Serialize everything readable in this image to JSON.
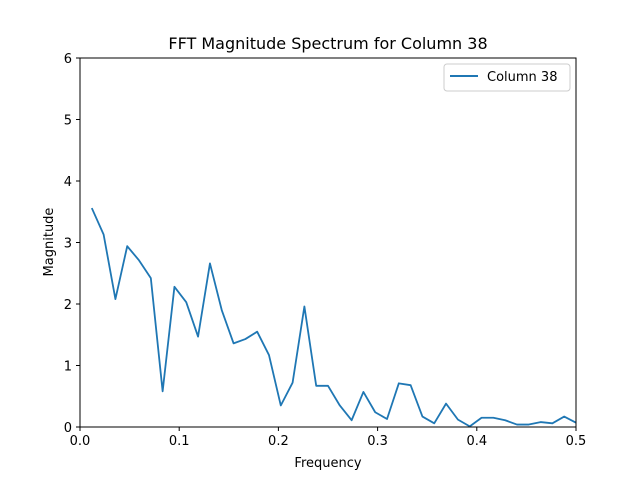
{
  "chart_data": {
    "type": "line",
    "title": "FFT Magnitude Spectrum for Column 38",
    "xlabel": "Frequency",
    "ylabel": "Magnitude",
    "xlim": [
      0.0,
      0.5
    ],
    "ylim": [
      0,
      6
    ],
    "xticks": [
      "0.0",
      "0.1",
      "0.2",
      "0.3",
      "0.4",
      "0.5"
    ],
    "yticks": [
      "0",
      "1",
      "2",
      "3",
      "4",
      "5",
      "6"
    ],
    "grid": false,
    "legend_position": "top-right",
    "series": [
      {
        "name": "Column 38",
        "color": "#1f77b4",
        "x": [
          0.0119,
          0.0238,
          0.0357,
          0.0476,
          0.0595,
          0.0714,
          0.0833,
          0.0952,
          0.1071,
          0.119,
          0.131,
          0.1429,
          0.1548,
          0.1667,
          0.1786,
          0.1905,
          0.2024,
          0.2143,
          0.2262,
          0.2381,
          0.25,
          0.2619,
          0.2738,
          0.2857,
          0.2976,
          0.3095,
          0.3214,
          0.3333,
          0.3452,
          0.3571,
          0.369,
          0.381,
          0.3929,
          0.4048,
          0.4167,
          0.4286,
          0.4405,
          0.4524,
          0.4643,
          0.4762,
          0.4881,
          0.5
        ],
        "y": [
          3.56,
          3.13,
          2.08,
          2.94,
          2.71,
          2.42,
          0.58,
          2.28,
          2.03,
          1.47,
          2.66,
          1.9,
          1.36,
          1.43,
          1.55,
          1.17,
          0.35,
          0.72,
          1.96,
          0.67,
          0.67,
          0.35,
          0.11,
          0.57,
          0.24,
          0.13,
          0.71,
          0.68,
          0.17,
          0.06,
          0.38,
          0.12,
          0.01,
          0.15,
          0.15,
          0.11,
          0.04,
          0.04,
          0.08,
          0.06,
          0.17,
          0.07
        ]
      }
    ]
  }
}
